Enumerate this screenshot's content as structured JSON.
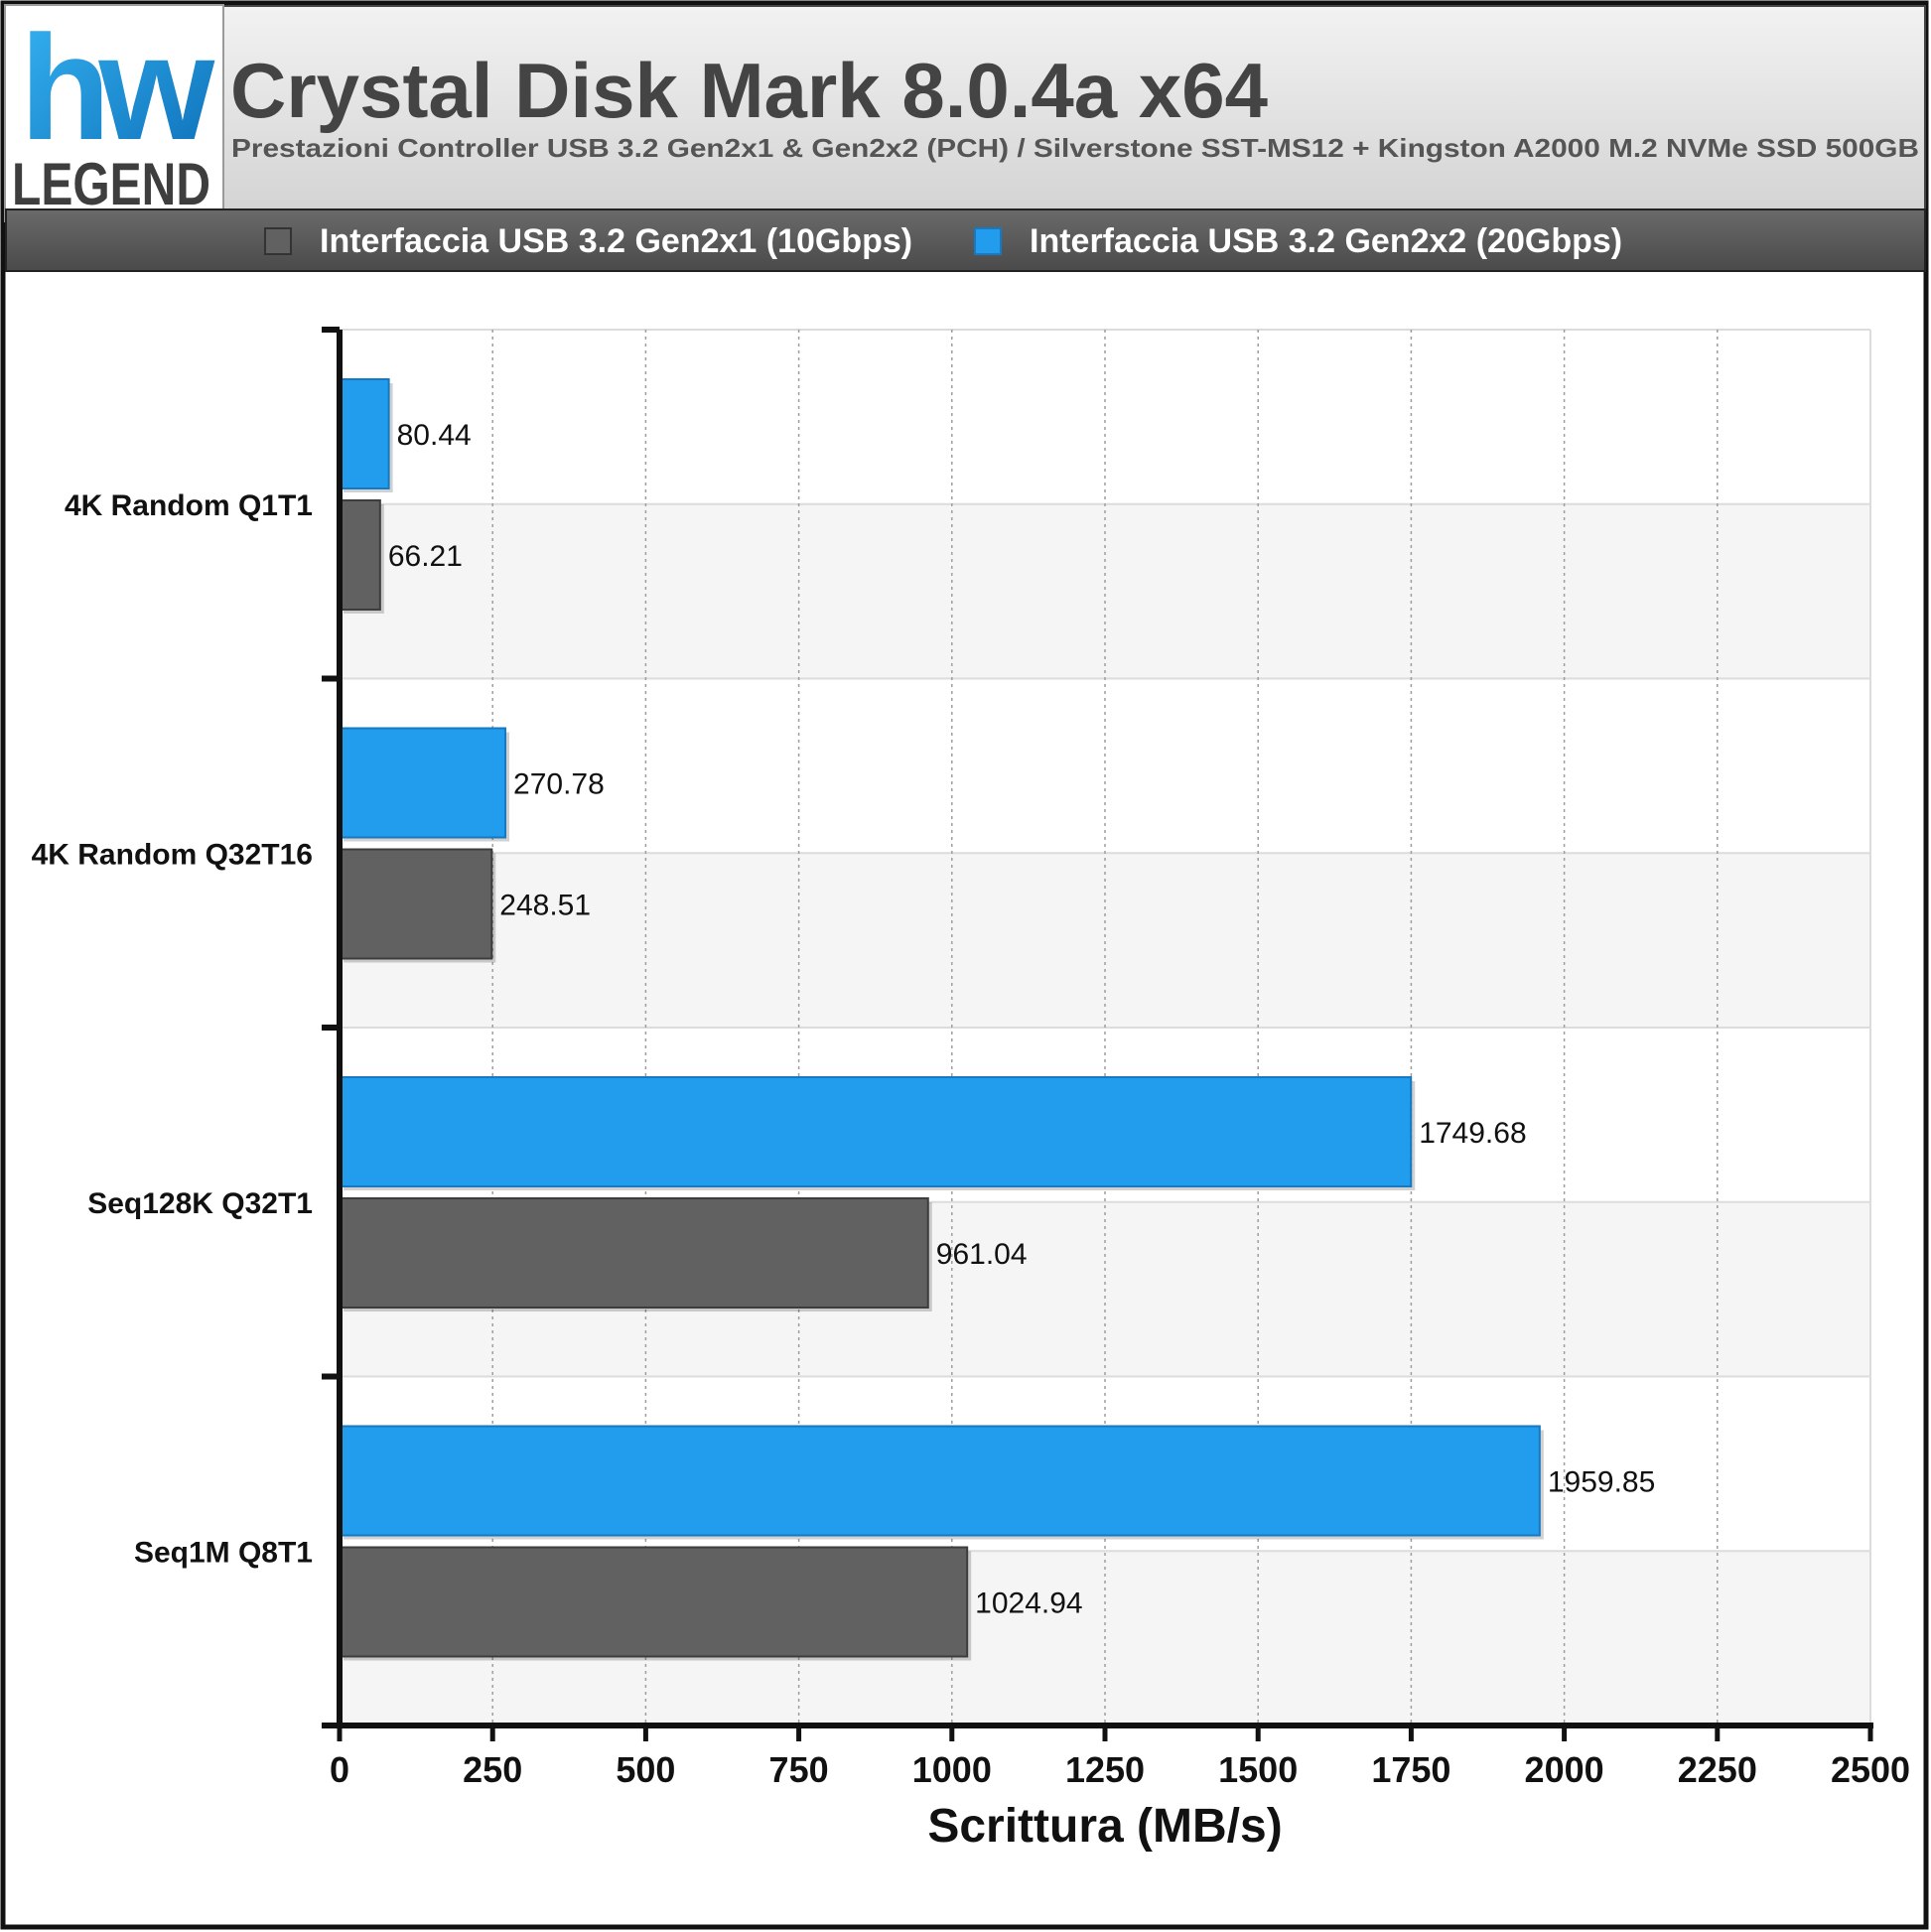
{
  "logo": {
    "mark": "hw",
    "text": "LEGEND"
  },
  "header": {
    "title": "Crystal Disk Mark 8.0.4a x64",
    "subtitle": "Prestazioni Controller USB 3.2 Gen2x1 & Gen2x2 (PCH) / Silverstone SST-MS12 + Kingston A2000 M.2 NVMe SSD 500GB"
  },
  "legend": {
    "placement": "top",
    "items": [
      {
        "label": "Interfaccia USB 3.2 Gen2x1 (10Gbps)",
        "color": "#616161"
      },
      {
        "label": "Interfaccia USB 3.2 Gen2x2 (20Gbps)",
        "color": "#229ded"
      }
    ]
  },
  "chart_data": {
    "type": "bar",
    "orientation": "horizontal",
    "categories": [
      "4K Random Q1T1",
      "4K Random Q32T16",
      "Seq128K Q32T1",
      "Seq1M Q8T1"
    ],
    "series": [
      {
        "name": "Interfaccia USB 3.2 Gen2x2 (20Gbps)",
        "color": "#229ded",
        "values": [
          80.44,
          270.78,
          1749.68,
          1959.85
        ]
      },
      {
        "name": "Interfaccia USB 3.2 Gen2x1 (10Gbps)",
        "color": "#616161",
        "values": [
          66.21,
          248.51,
          961.04,
          1024.94
        ]
      }
    ],
    "xlabel": "Scrittura (MB/s)",
    "ylabel": "",
    "xlim": [
      0,
      2500
    ],
    "xticks": [
      0,
      250,
      500,
      750,
      1000,
      1250,
      1500,
      1750,
      2000,
      2250,
      2500
    ],
    "grid": true
  }
}
